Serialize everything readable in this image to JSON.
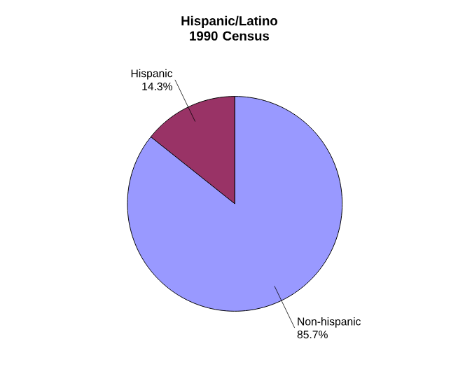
{
  "chart_data": {
    "type": "pie",
    "title": "Hispanic/Latino\n1990 Census",
    "categories": [
      "Hispanic",
      "Non-hispanic"
    ],
    "values": [
      14.3,
      85.7
    ],
    "colors": [
      "#993366",
      "#9999ff"
    ],
    "value_labels": [
      "14.3%",
      "85.7%"
    ]
  }
}
